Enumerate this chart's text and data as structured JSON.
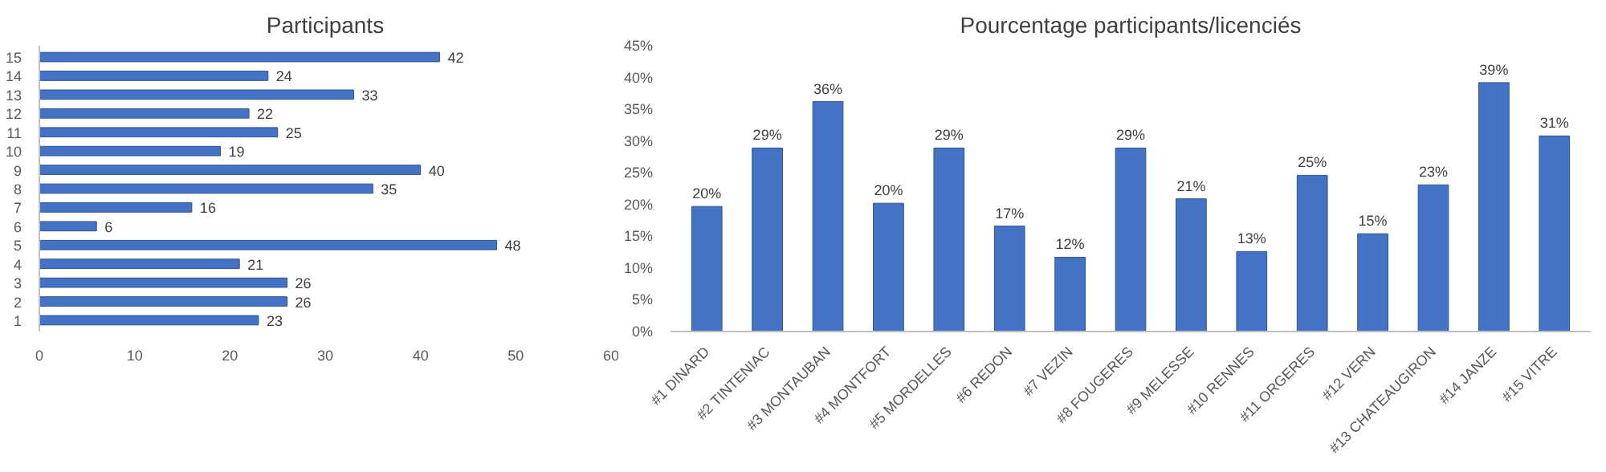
{
  "chart_data": [
    {
      "type": "bar",
      "title": "Participants",
      "orientation": "horizontal",
      "categories": [
        "15",
        "14",
        "13",
        "12",
        "11",
        "10",
        "9",
        "8",
        "7",
        "6",
        "5",
        "4",
        "3",
        "2",
        "1"
      ],
      "values": [
        42,
        24,
        33,
        22,
        25,
        19,
        40,
        35,
        16,
        6,
        48,
        21,
        26,
        26,
        23
      ],
      "color": "#4472c4",
      "xlim": [
        0,
        60
      ],
      "xticks": [
        0,
        10,
        20,
        30,
        40,
        50,
        60
      ],
      "data_labels": true
    },
    {
      "type": "bar",
      "title": "Pourcentage participants/licenciés",
      "categories": [
        "#1 DINARD",
        "#2 TINTENIAC",
        "#3 MONTAUBAN",
        "#4 MONTFORT",
        "#5 MORDELLES",
        "#6 REDON",
        "#7 VEZIN",
        "#8 FOUGERES",
        "#9 MELESSE",
        "#10 RENNES",
        "#11 ORGERES",
        "#12 VERN",
        "#13 CHATEAUGIRON",
        "#14 JANZE",
        "#15 VITRE"
      ],
      "values": [
        19.7,
        28.9,
        36.2,
        20.2,
        28.9,
        16.6,
        11.7,
        28.9,
        20.9,
        12.6,
        24.6,
        15.4,
        23.1,
        39.2,
        30.8
      ],
      "value_labels": [
        "20%",
        "29%",
        "36%",
        "20%",
        "29%",
        "17%",
        "12%",
        "29%",
        "21%",
        "13%",
        "25%",
        "15%",
        "23%",
        "39%",
        "31%"
      ],
      "color": "#4472c4",
      "ylim": [
        0,
        45
      ],
      "yticks": [
        {
          "value": 0,
          "label": "0%"
        },
        {
          "value": 5,
          "label": "5%"
        },
        {
          "value": 10,
          "label": "10%"
        },
        {
          "value": 15,
          "label": "15%"
        },
        {
          "value": 20,
          "label": "20%"
        },
        {
          "value": 25,
          "label": "25%"
        },
        {
          "value": 30,
          "label": "30%"
        },
        {
          "value": 35,
          "label": "35%"
        },
        {
          "value": 40,
          "label": "40%"
        },
        {
          "value": 45,
          "label": "45%"
        }
      ]
    }
  ]
}
